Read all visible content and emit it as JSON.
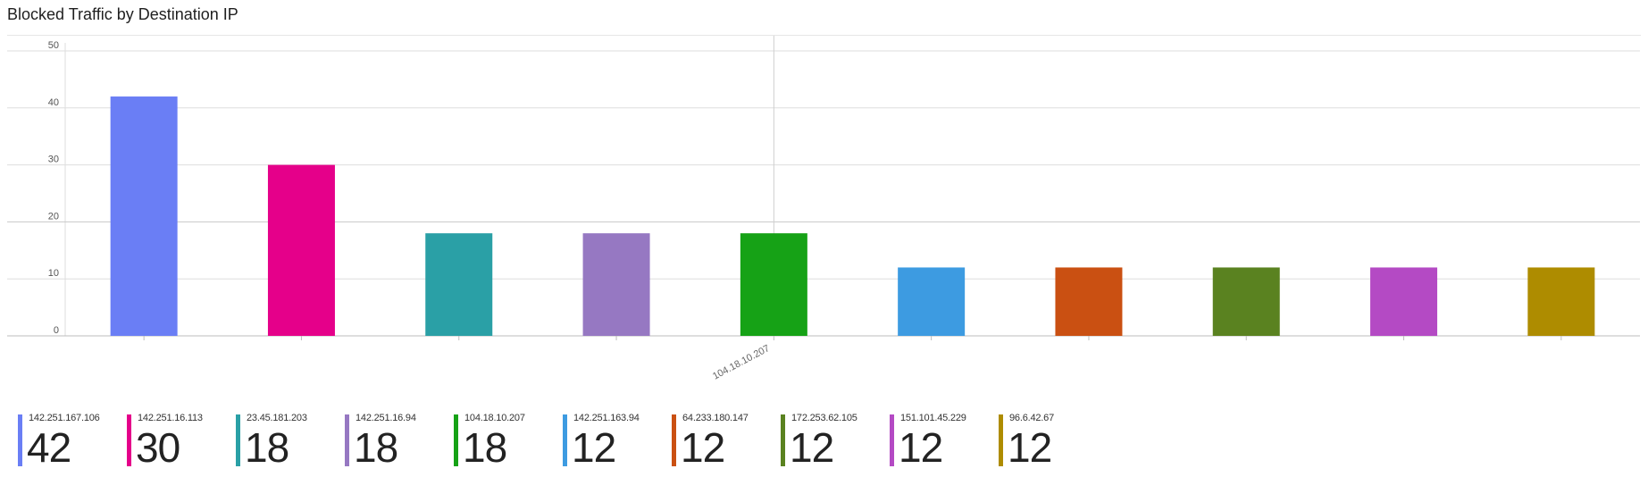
{
  "chart_data": {
    "type": "bar",
    "title": "Blocked Traffic by Destination IP",
    "categories": [
      "142.251.167.106",
      "142.251.16.113",
      "23.45.181.203",
      "142.251.16.94",
      "104.18.10.207",
      "142.251.163.94",
      "64.233.180.147",
      "172.253.62.105",
      "151.101.45.229",
      "96.6.42.67"
    ],
    "values": [
      42,
      30,
      18,
      18,
      18,
      12,
      12,
      12,
      12,
      12
    ],
    "colors": [
      "#6a7ef5",
      "#e5008a",
      "#2aa0a6",
      "#9678c2",
      "#16a216",
      "#3d9be1",
      "#ca5012",
      "#5a8220",
      "#b44ac4",
      "#ae8c00"
    ],
    "ylim": [
      0,
      50
    ],
    "yticks": [
      "0",
      "10",
      "20",
      "30",
      "40",
      "50"
    ],
    "visible_x_label": "104.18.10.207",
    "xlabel": "",
    "ylabel": "",
    "grid": true,
    "legend": "bottom"
  }
}
